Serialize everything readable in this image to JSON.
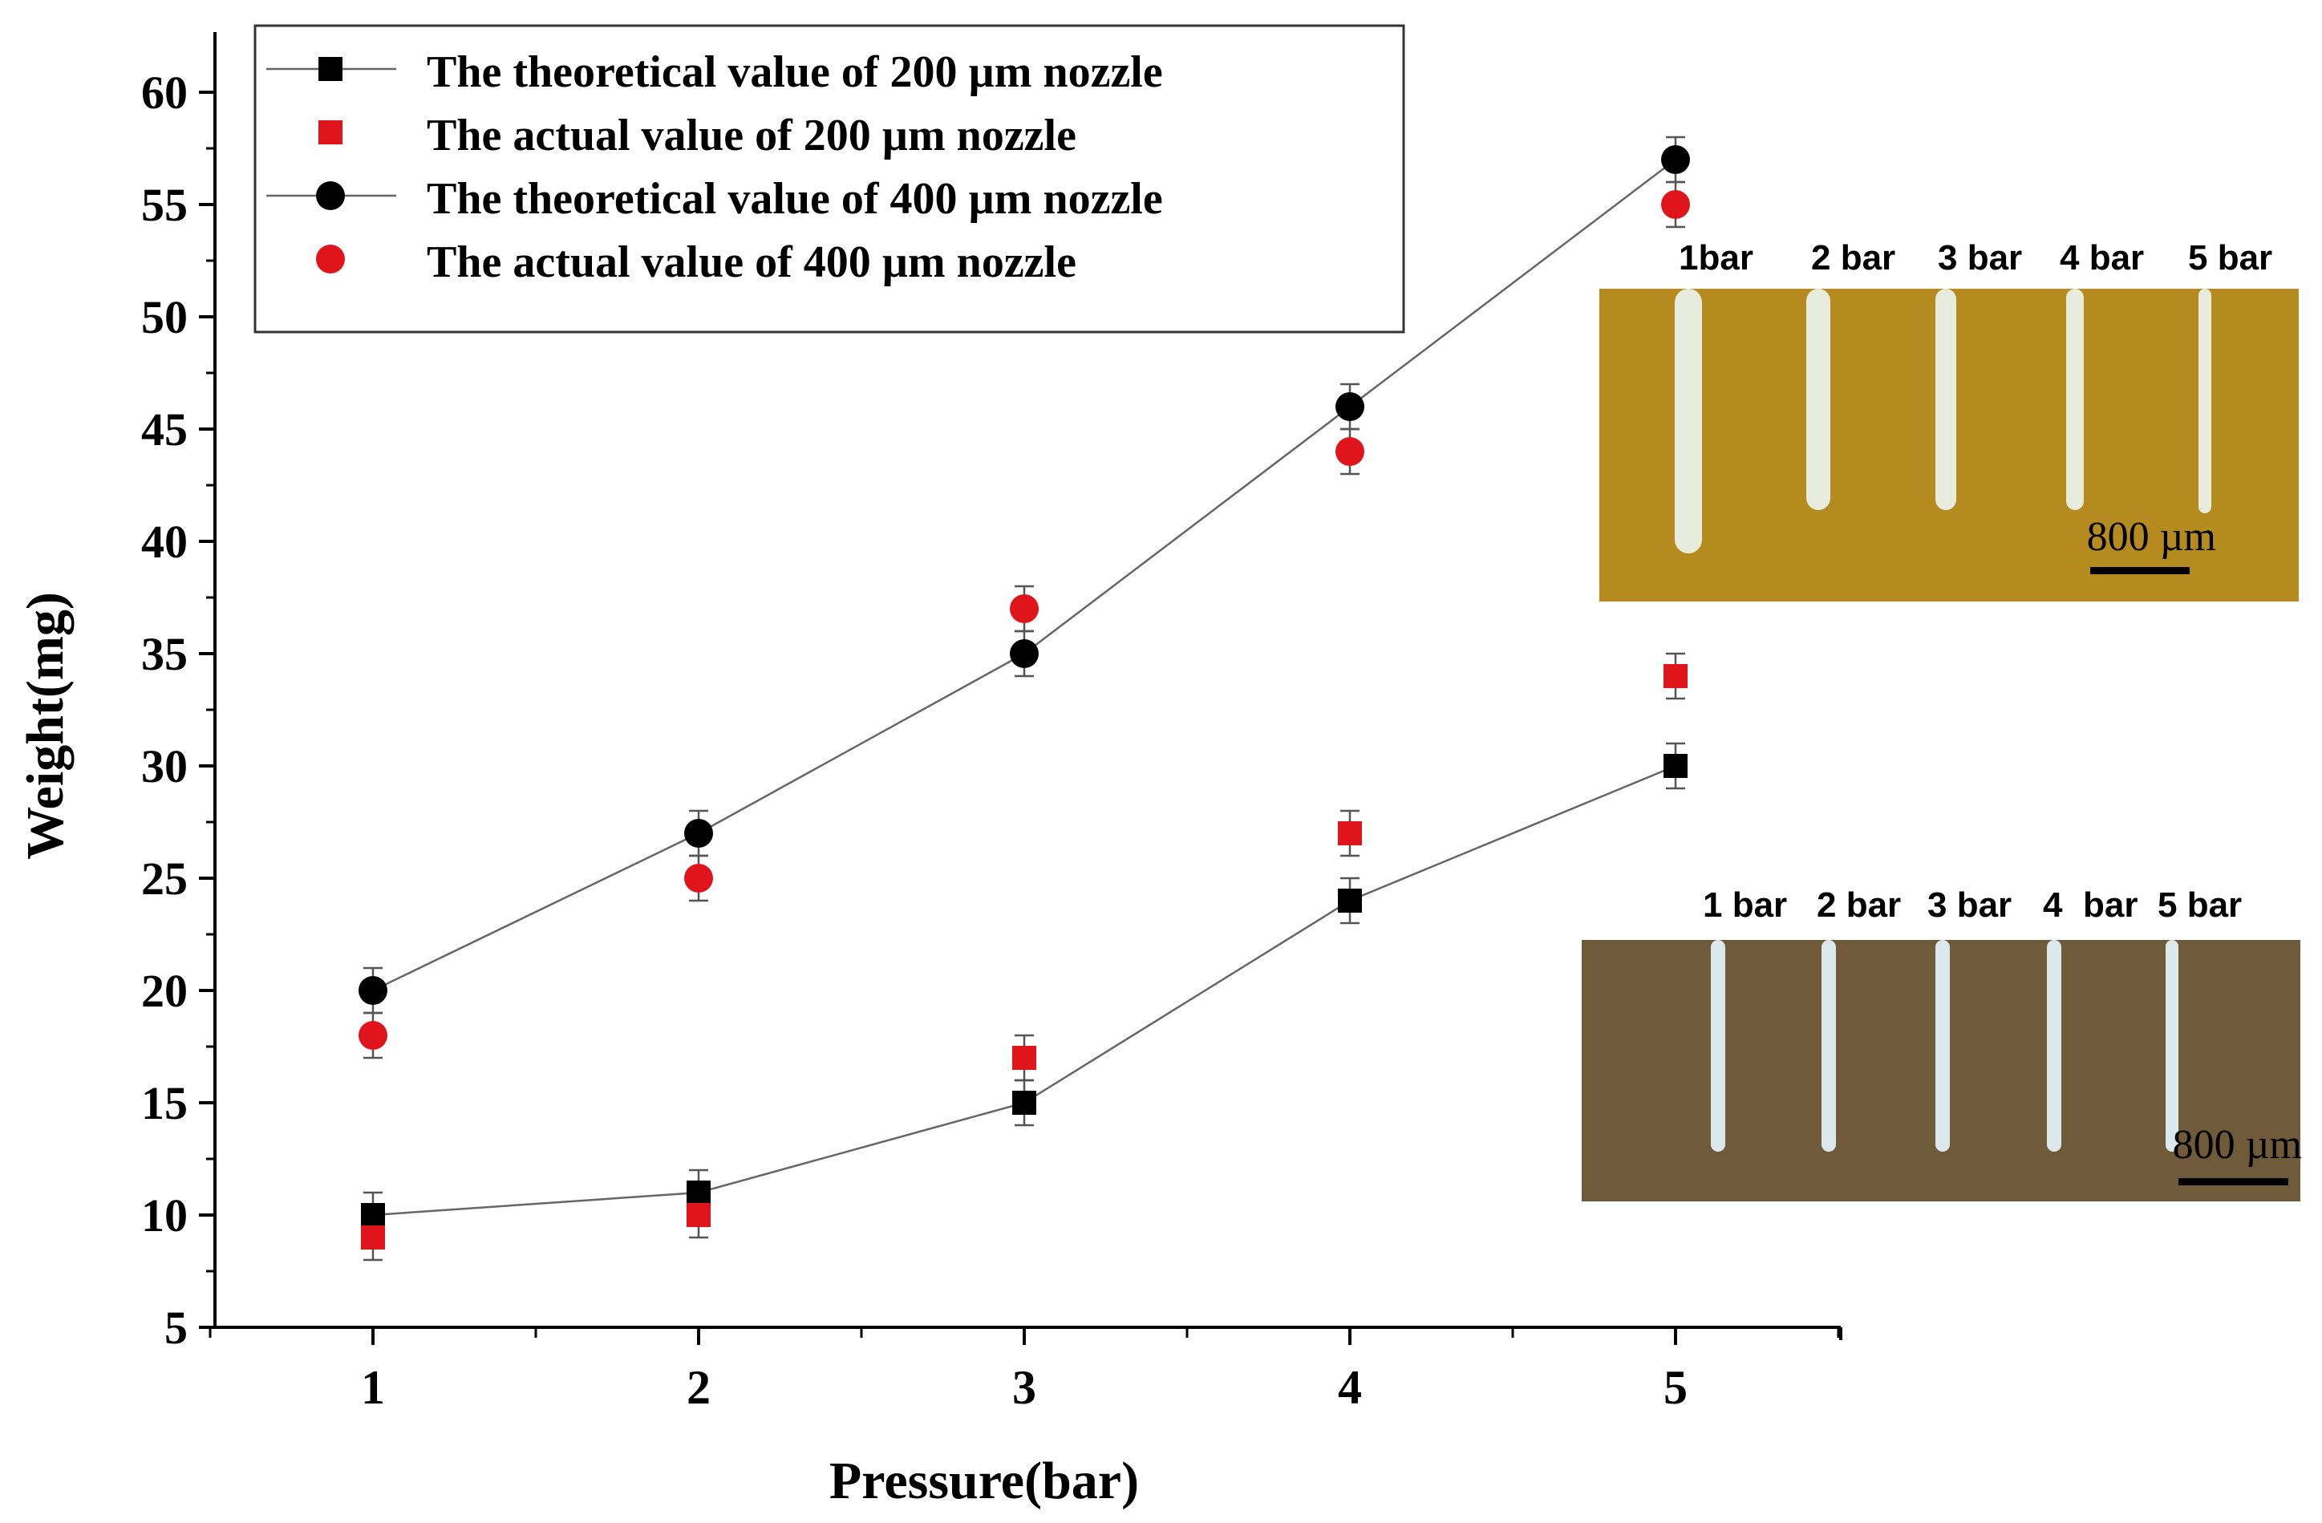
{
  "chart_data": {
    "type": "scatter",
    "title": "",
    "xlabel": "Pressure(bar)",
    "ylabel": "Weight(mg)",
    "xlim": [
      0.5,
      5.5
    ],
    "ylim": [
      5,
      62
    ],
    "x_ticks": [
      1,
      2,
      3,
      4,
      5
    ],
    "y_ticks": [
      5,
      10,
      15,
      20,
      25,
      30,
      35,
      40,
      45,
      50,
      55,
      60
    ],
    "x": [
      1,
      2,
      3,
      4,
      5
    ],
    "series": [
      {
        "name": "The theoretical value of 200 µm nozzle",
        "marker": "square",
        "color": "#000000",
        "line": true,
        "values": [
          10,
          11,
          15,
          24,
          30
        ],
        "error": [
          1,
          1,
          1,
          1,
          1
        ]
      },
      {
        "name": "The actual value of 200 µm nozzle",
        "marker": "square",
        "color": "#e0141b",
        "line": false,
        "values": [
          9,
          10,
          17,
          27,
          34
        ],
        "error": [
          1,
          1,
          1,
          1,
          1
        ]
      },
      {
        "name": "The theoretical value of 400 µm nozzle",
        "marker": "circle",
        "color": "#000000",
        "line": true,
        "values": [
          20,
          27,
          35,
          46,
          57
        ],
        "error": [
          1,
          1,
          1,
          1,
          1
        ]
      },
      {
        "name": "The actual value of 400 µm nozzle",
        "marker": "circle",
        "color": "#e0141b",
        "line": false,
        "values": [
          18,
          25,
          37,
          44,
          55
        ],
        "error": [
          1,
          1,
          1,
          1,
          1
        ]
      }
    ],
    "legend_position": "top-left"
  },
  "insets": [
    {
      "name": "400 µm nozzle print photo",
      "background": "#b58a1f",
      "line_color": "#e8ecdc",
      "labels": [
        "1bar",
        "2 bar",
        "3 bar",
        "4 bar",
        "5 bar"
      ],
      "scale_bar": "800 µm"
    },
    {
      "name": "200 µm nozzle print photo",
      "background": "#6f5a3a",
      "line_color": "#dce9ec",
      "labels": [
        "1 bar",
        "2 bar",
        "3 bar",
        "4",
        "bar",
        "5 bar"
      ],
      "scale_bar": "800 µm"
    }
  ]
}
